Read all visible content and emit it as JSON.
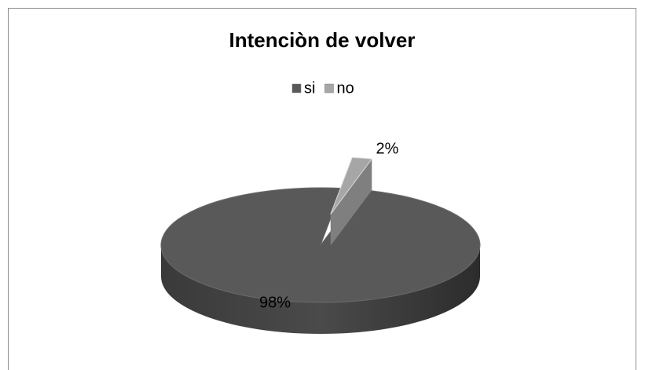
{
  "chart_data": {
    "type": "pie",
    "title": "Intenciòn de volver",
    "categories": [
      "si",
      "no"
    ],
    "values": [
      98,
      2
    ],
    "value_labels": [
      "98%",
      "2%"
    ],
    "colors": [
      "#595959",
      "#a6a6a6"
    ],
    "legend": "top",
    "three_d": true
  }
}
